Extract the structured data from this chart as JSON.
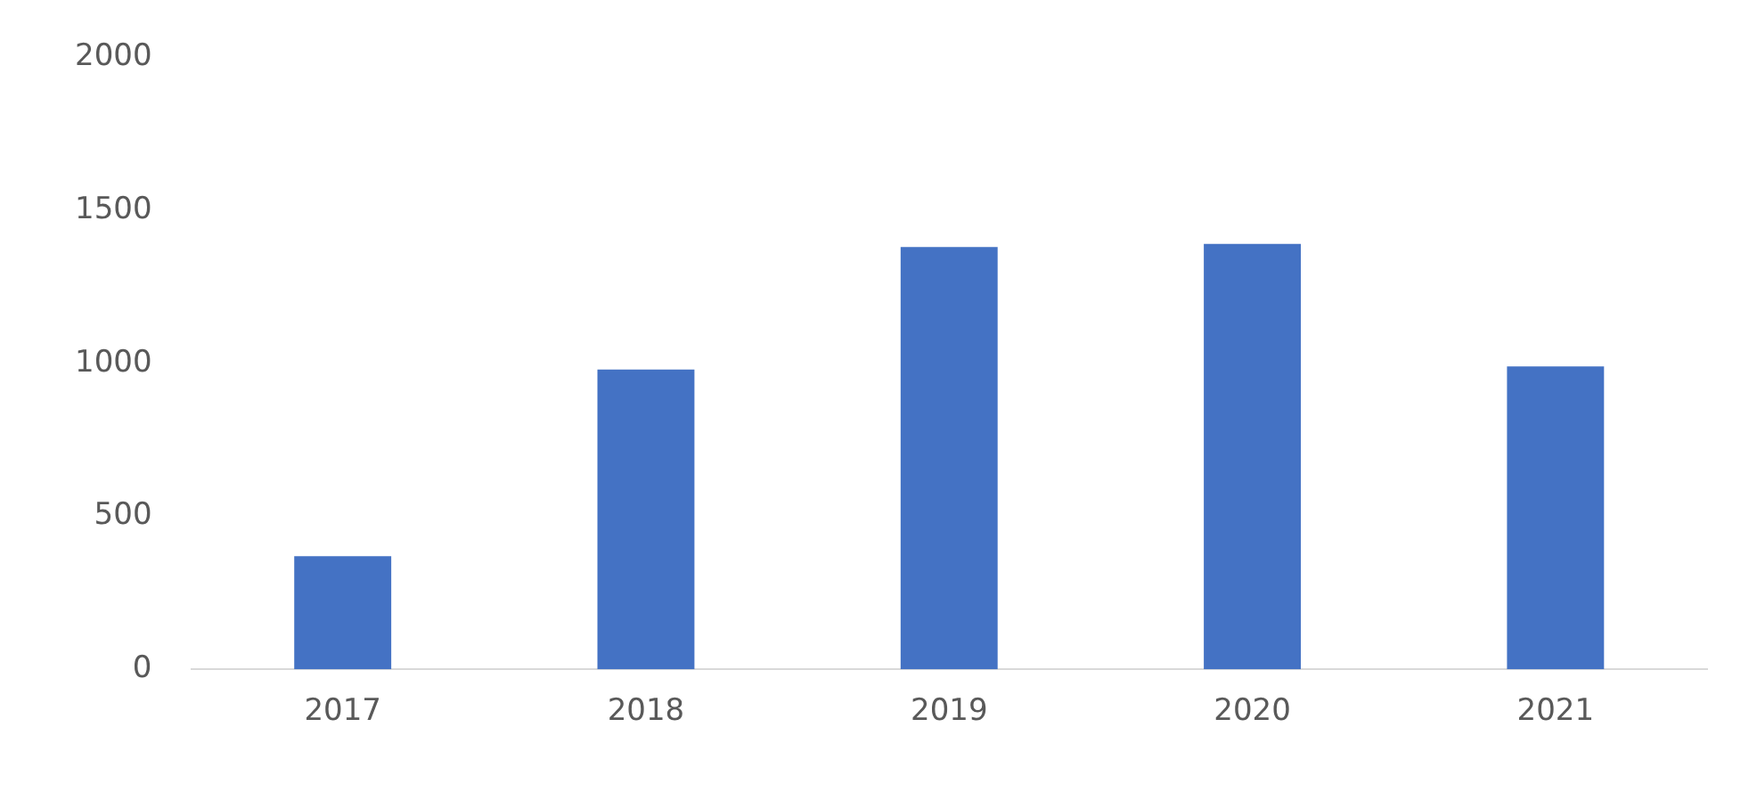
{
  "chart_data": {
    "type": "bar",
    "categories": [
      "2017",
      "2018",
      "2019",
      "2020",
      "2021"
    ],
    "values": [
      370,
      980,
      1380,
      1390,
      990
    ],
    "color": "#4472c4",
    "ylim": [
      0,
      2000
    ],
    "yticks": [
      0,
      500,
      1000,
      1500,
      2000
    ],
    "grid": false,
    "legend": false
  }
}
